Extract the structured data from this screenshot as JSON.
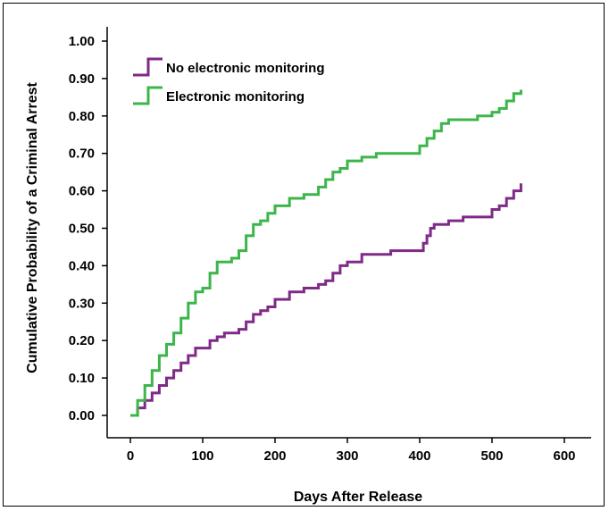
{
  "chart_data": {
    "type": "line",
    "xlabel": "Days After Release",
    "ylabel": "Cumulative Probability of a Criminal Arrest",
    "xlim": [
      0,
      600
    ],
    "ylim": [
      0,
      1.0
    ],
    "x_ticks": [
      "0",
      "100",
      "200",
      "300",
      "400",
      "500",
      "600"
    ],
    "y_ticks": [
      "0.00",
      "0.10",
      "0.20",
      "0.30",
      "0.40",
      "0.50",
      "0.60",
      "0.70",
      "0.80",
      "0.90",
      "1.00"
    ],
    "grid": false,
    "legend_position": "top-left",
    "series": [
      {
        "name": "No electronic monitoring",
        "color": "#7f2a87",
        "x": [
          0,
          10,
          20,
          30,
          40,
          50,
          60,
          70,
          80,
          90,
          100,
          110,
          120,
          130,
          140,
          150,
          160,
          170,
          180,
          190,
          200,
          220,
          240,
          260,
          270,
          280,
          290,
          300,
          320,
          340,
          360,
          380,
          400,
          405,
          410,
          415,
          420,
          440,
          460,
          480,
          500,
          510,
          520,
          530,
          540
        ],
        "y": [
          0.0,
          0.02,
          0.04,
          0.06,
          0.08,
          0.1,
          0.12,
          0.14,
          0.16,
          0.18,
          0.18,
          0.2,
          0.21,
          0.22,
          0.22,
          0.23,
          0.25,
          0.27,
          0.28,
          0.29,
          0.31,
          0.33,
          0.34,
          0.35,
          0.36,
          0.38,
          0.4,
          0.41,
          0.43,
          0.43,
          0.44,
          0.44,
          0.44,
          0.46,
          0.48,
          0.5,
          0.51,
          0.52,
          0.53,
          0.53,
          0.55,
          0.56,
          0.58,
          0.6,
          0.62
        ]
      },
      {
        "name": "Electronic monitoring",
        "color": "#3cb54a",
        "x": [
          0,
          10,
          20,
          30,
          40,
          50,
          60,
          70,
          80,
          90,
          100,
          110,
          120,
          130,
          140,
          150,
          160,
          170,
          180,
          190,
          200,
          220,
          240,
          260,
          270,
          280,
          290,
          300,
          320,
          340,
          360,
          380,
          400,
          410,
          420,
          430,
          440,
          460,
          480,
          500,
          510,
          520,
          530,
          540
        ],
        "y": [
          0.0,
          0.04,
          0.08,
          0.12,
          0.16,
          0.19,
          0.22,
          0.26,
          0.3,
          0.33,
          0.34,
          0.38,
          0.41,
          0.41,
          0.42,
          0.44,
          0.48,
          0.51,
          0.52,
          0.54,
          0.56,
          0.58,
          0.59,
          0.61,
          0.63,
          0.65,
          0.66,
          0.68,
          0.69,
          0.7,
          0.7,
          0.7,
          0.72,
          0.74,
          0.76,
          0.78,
          0.79,
          0.79,
          0.8,
          0.81,
          0.82,
          0.84,
          0.86,
          0.87
        ]
      }
    ]
  }
}
